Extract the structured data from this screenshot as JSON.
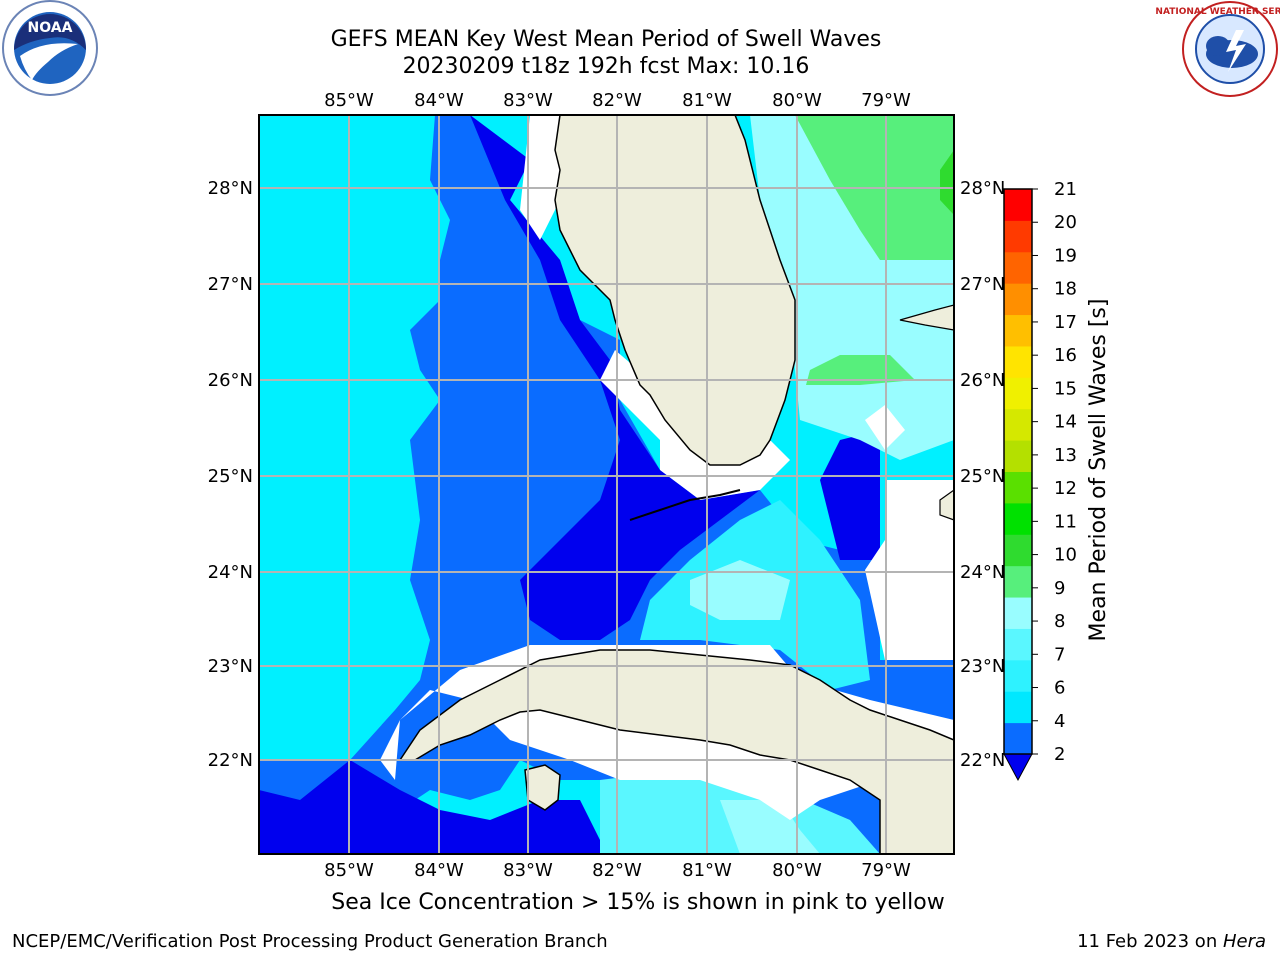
{
  "header": {
    "title_line1": "GEFS MEAN Key West Mean Period of Swell Waves",
    "title_line2": "20230209 t18z 192h fcst   Max: 10.16"
  },
  "map": {
    "lon_labels": [
      "85°W",
      "84°W",
      "83°W",
      "82°W",
      "81°W",
      "80°W",
      "79°W"
    ],
    "lat_labels": [
      "28°N",
      "27°N",
      "26°N",
      "25°N",
      "24°N",
      "23°N",
      "22°N"
    ],
    "land_color": "#eeeedc",
    "grid_color": "#b4b4b4"
  },
  "colorbar": {
    "label": "Mean Period of Swell Waves [s]",
    "ticks": [
      "2",
      "4",
      "6",
      "7",
      "8",
      "9",
      "10",
      "11",
      "12",
      "13",
      "14",
      "15",
      "16",
      "17",
      "18",
      "19",
      "20",
      "21"
    ],
    "colors": [
      "#0a6cff",
      "#00e8ff",
      "#2ef2ff",
      "#5af7ff",
      "#99fdff",
      "#57ef7c",
      "#2fdb2f",
      "#00e100",
      "#5ae000",
      "#b4e000",
      "#d5e800",
      "#f0f000",
      "#ffe400",
      "#ffbf00",
      "#ff8f00",
      "#ff6400",
      "#ff3a00",
      "#ff0000"
    ],
    "under_color": "#0000ee"
  },
  "caption": "Sea Ice Concentration > 15% is shown in pink to yellow",
  "footer": {
    "left": "NCEP/EMC/Verification Post Processing Product Generation Branch",
    "date": "11 Feb 2023 on ",
    "host": "Hera"
  },
  "logos": {
    "noaa_text": "NOAA",
    "nws_text": "NATIONAL WEATHER SERVICE"
  }
}
